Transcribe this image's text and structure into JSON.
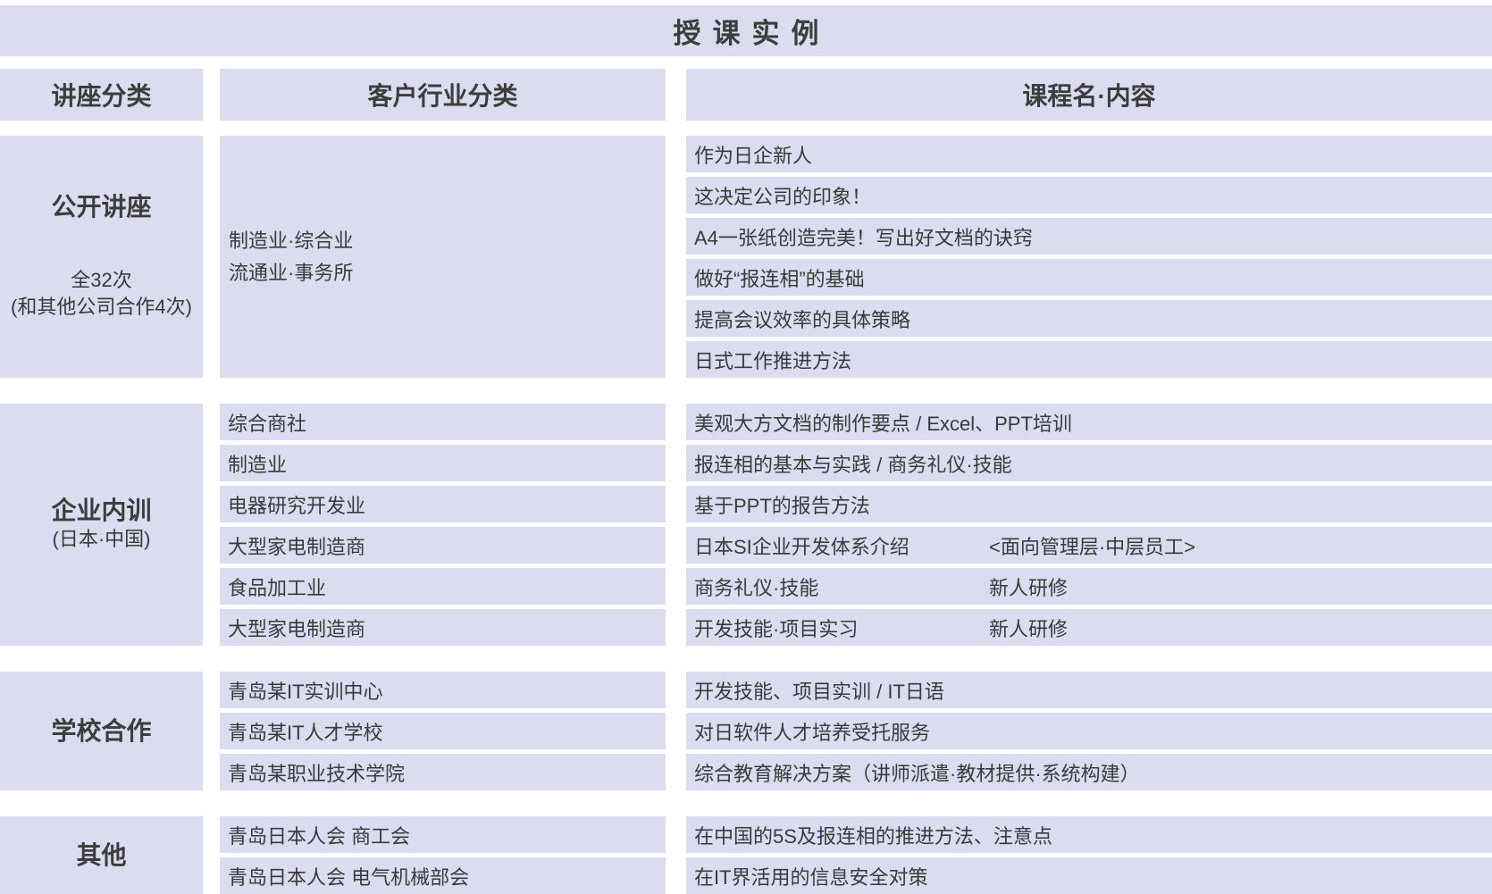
{
  "title": "授课实例",
  "headers": {
    "category": "讲座分类",
    "industry": "客户行业分类",
    "course": "课程名·内容"
  },
  "colors": {
    "cell_bg": "#dcdcf1",
    "text": "#3a3a3a",
    "page_bg": "#ffffff"
  },
  "sections": [
    {
      "label": "公开讲座",
      "sublabel": "全32次\n(和其他公司合作4次)",
      "sub_gap": true,
      "industry_block": "制造业·综合业\n流通业·事务所",
      "rows": [
        {
          "course": "作为日企新人"
        },
        {
          "course": "这决定公司的印象！"
        },
        {
          "course": "A4一张纸创造完美！写出好文档的诀窍"
        },
        {
          "course": "做好“报连相”的基础"
        },
        {
          "course": "提高会议效率的具体策略"
        },
        {
          "course": "日式工作推进方法"
        }
      ]
    },
    {
      "label": "企业内训",
      "sublabel": "(日本·中国)",
      "rows": [
        {
          "industry": "综合商社",
          "course": "美观大方文档的制作要点 / Excel、PPT培训"
        },
        {
          "industry": "制造业",
          "course": "报连相的基本与实践 / 商务礼仪·技能"
        },
        {
          "industry": "电器研究开发业",
          "course": "基于PPT的报告方法"
        },
        {
          "industry": "大型家电制造商",
          "course": "日本SI企业开发体系介绍",
          "note": "<面向管理层·中层员工>"
        },
        {
          "industry": "食品加工业",
          "course": "商务礼仪·技能",
          "note": "新人研修"
        },
        {
          "industry": "大型家电制造商",
          "course": "开发技能·项目实习",
          "note": "新人研修"
        }
      ]
    },
    {
      "label": "学校合作",
      "rows": [
        {
          "industry": "青岛某IT实训中心",
          "course": "开发技能、项目实训 / IT日语"
        },
        {
          "industry": "青岛某IT人才学校",
          "course": "对日软件人才培养受托服务"
        },
        {
          "industry": "青岛某职业技术学院",
          "course": "综合教育解决方案（讲师派遣·教材提供·系统构建）"
        }
      ]
    },
    {
      "label": "其他",
      "rows": [
        {
          "industry": "青岛日本人会 商工会",
          "course": "在中国的5S及报连相的推进方法、注意点"
        },
        {
          "industry": "青岛日本人会 电气机械部会",
          "course": "在IT界活用的信息安全对策"
        }
      ]
    }
  ]
}
